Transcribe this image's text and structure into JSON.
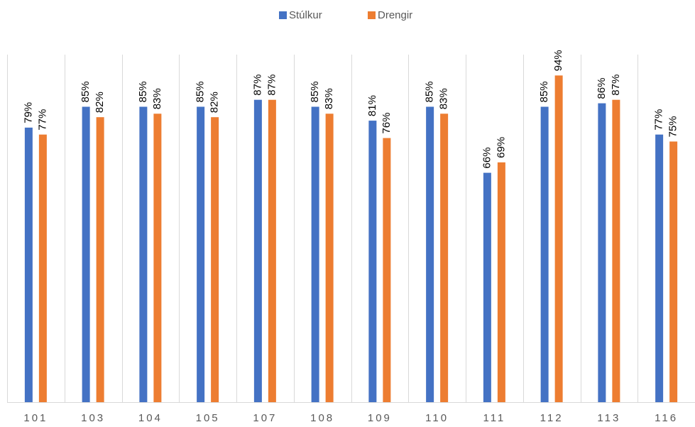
{
  "chart_data": {
    "type": "bar",
    "categories": [
      "101",
      "103",
      "104",
      "105",
      "107",
      "108",
      "109",
      "110",
      "111",
      "112",
      "113",
      "116"
    ],
    "series": [
      {
        "name": "Stúlkur",
        "color": "#4472c4",
        "values": [
          79,
          85,
          85,
          85,
          87,
          85,
          81,
          85,
          66,
          85,
          86,
          77
        ],
        "value_labels": [
          "79%",
          "85%",
          "85%",
          "85%",
          "87%",
          "85%",
          "81%",
          "85%",
          "66%",
          "85%",
          "86%",
          "77%"
        ]
      },
      {
        "name": "Drengir",
        "color": "#ed7d31",
        "values": [
          77,
          82,
          83,
          82,
          87,
          83,
          76,
          83,
          69,
          94,
          87,
          75
        ],
        "value_labels": [
          "77%",
          "82%",
          "83%",
          "82%",
          "87%",
          "83%",
          "76%",
          "83%",
          "69%",
          "94%",
          "87%",
          "75%"
        ]
      }
    ],
    "ylim": [
      0,
      100
    ],
    "legend": "top"
  }
}
